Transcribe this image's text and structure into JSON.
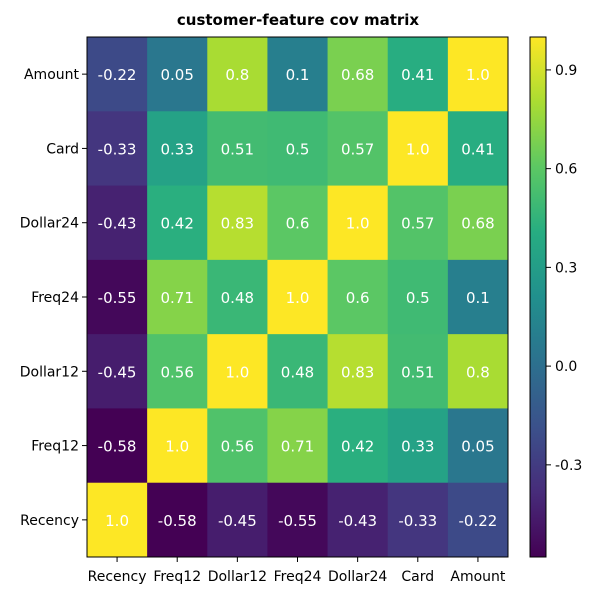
{
  "chart_data": {
    "type": "heatmap",
    "title": "customer-feature cov matrix",
    "xlabel": "",
    "ylabel": "",
    "x_categories": [
      "Recency",
      "Freq12",
      "Dollar12",
      "Freq24",
      "Dollar24",
      "Card",
      "Amount"
    ],
    "y_categories_top_to_bottom": [
      "Amount",
      "Card",
      "Dollar24",
      "Freq24",
      "Dollar12",
      "Freq12",
      "Recency"
    ],
    "values": [
      [
        -0.22,
        0.05,
        0.8,
        0.1,
        0.68,
        0.41,
        1.0
      ],
      [
        -0.33,
        0.33,
        0.51,
        0.5,
        0.57,
        1.0,
        0.41
      ],
      [
        -0.43,
        0.42,
        0.83,
        0.6,
        1.0,
        0.57,
        0.68
      ],
      [
        -0.55,
        0.71,
        0.48,
        1.0,
        0.6,
        0.5,
        0.1
      ],
      [
        -0.45,
        0.56,
        1.0,
        0.48,
        0.83,
        0.51,
        0.8
      ],
      [
        -0.58,
        1.0,
        0.56,
        0.71,
        0.42,
        0.33,
        0.05
      ],
      [
        1.0,
        -0.58,
        -0.45,
        -0.55,
        -0.43,
        -0.33,
        -0.22
      ]
    ],
    "cell_labels": [
      [
        "-0.22",
        "0.05",
        "0.8",
        "0.1",
        "0.68",
        "0.41",
        "1.0"
      ],
      [
        "-0.33",
        "0.33",
        "0.51",
        "0.5",
        "0.57",
        "1.0",
        "0.41"
      ],
      [
        "-0.43",
        "0.42",
        "0.83",
        "0.6",
        "1.0",
        "0.57",
        "0.68"
      ],
      [
        "-0.55",
        "0.71",
        "0.48",
        "1.0",
        "0.6",
        "0.5",
        "0.1"
      ],
      [
        "-0.45",
        "0.56",
        "1.0",
        "0.48",
        "0.83",
        "0.51",
        "0.8"
      ],
      [
        "-0.58",
        "1.0",
        "0.56",
        "0.71",
        "0.42",
        "0.33",
        "0.05"
      ],
      [
        "1.0",
        "-0.58",
        "-0.45",
        "-0.55",
        "-0.43",
        "-0.33",
        "-0.22"
      ]
    ],
    "colormap": "viridis",
    "color_range": [
      -0.58,
      1.0
    ],
    "colorbar": {
      "ticks": [
        -0.3,
        0.0,
        0.3,
        0.6,
        0.9
      ],
      "tick_labels": [
        "-0.3",
        "0.0",
        "0.3",
        "0.6",
        "0.9"
      ],
      "placement": "right"
    },
    "grid": false,
    "legend": "none"
  }
}
